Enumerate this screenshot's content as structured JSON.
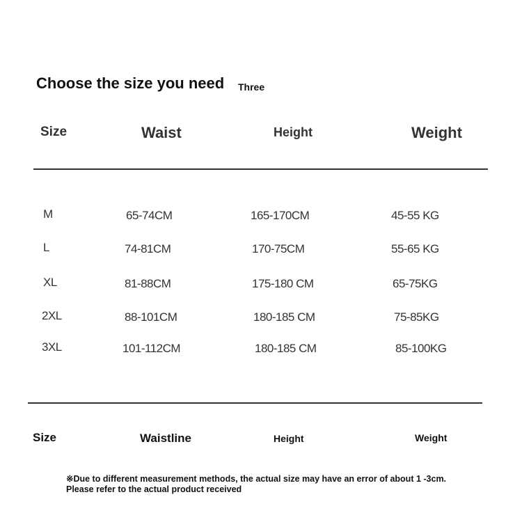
{
  "title": "Choose the size you need",
  "subtitle": "Three",
  "top_headers": [
    "Size",
    "Waist",
    "Height",
    "Weight"
  ],
  "rows": [
    [
      "M",
      "65-74CM",
      "165-170CM",
      "45-55 KG"
    ],
    [
      "L",
      "74-81CM",
      "170-75CM",
      "55-65 KG"
    ],
    [
      "XL",
      "81-88CM",
      "175-180 CM",
      "65-75KG"
    ],
    [
      "2XL",
      "88-101CM",
      "180-185 CM",
      "75-85KG"
    ],
    [
      "3XL",
      "101-112CM",
      "180-185 CM",
      "85-100KG"
    ]
  ],
  "bottom_headers": [
    "Size",
    "Waistline",
    "Height",
    "Weight"
  ],
  "note": "※Due to different measurement methods, the actual size may have an error of about 1 -3cm. Please refer to the actual product received"
}
